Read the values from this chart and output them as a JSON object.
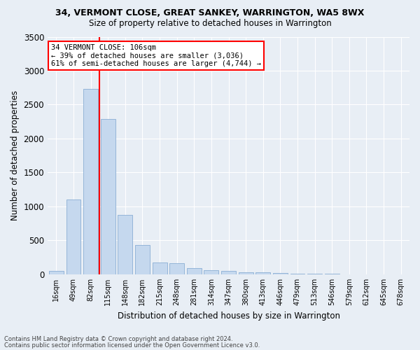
{
  "title1": "34, VERMONT CLOSE, GREAT SANKEY, WARRINGTON, WA5 8WX",
  "title2": "Size of property relative to detached houses in Warrington",
  "xlabel": "Distribution of detached houses by size in Warrington",
  "ylabel": "Number of detached properties",
  "categories": [
    "16sqm",
    "49sqm",
    "82sqm",
    "115sqm",
    "148sqm",
    "182sqm",
    "215sqm",
    "248sqm",
    "281sqm",
    "314sqm",
    "347sqm",
    "380sqm",
    "413sqm",
    "446sqm",
    "479sqm",
    "513sqm",
    "546sqm",
    "579sqm",
    "612sqm",
    "645sqm",
    "678sqm"
  ],
  "values": [
    50,
    1100,
    2730,
    2290,
    880,
    430,
    175,
    165,
    90,
    60,
    50,
    30,
    28,
    15,
    12,
    8,
    5,
    4,
    3,
    2,
    2
  ],
  "bar_color": "#c5d8ee",
  "bar_edgecolor": "#8aaed4",
  "vline_x": 2.5,
  "vline_color": "red",
  "annotation_text": "34 VERMONT CLOSE: 106sqm\n← 39% of detached houses are smaller (3,036)\n61% of semi-detached houses are larger (4,744) →",
  "annotation_box_color": "white",
  "annotation_box_edgecolor": "red",
  "ylim": [
    0,
    3500
  ],
  "yticks": [
    0,
    500,
    1000,
    1500,
    2000,
    2500,
    3000,
    3500
  ],
  "footer1": "Contains HM Land Registry data © Crown copyright and database right 2024.",
  "footer2": "Contains public sector information licensed under the Open Government Licence v3.0.",
  "bg_color": "#e8eef5",
  "plot_bg_color": "#e8eef5",
  "grid_color": "#ffffff"
}
